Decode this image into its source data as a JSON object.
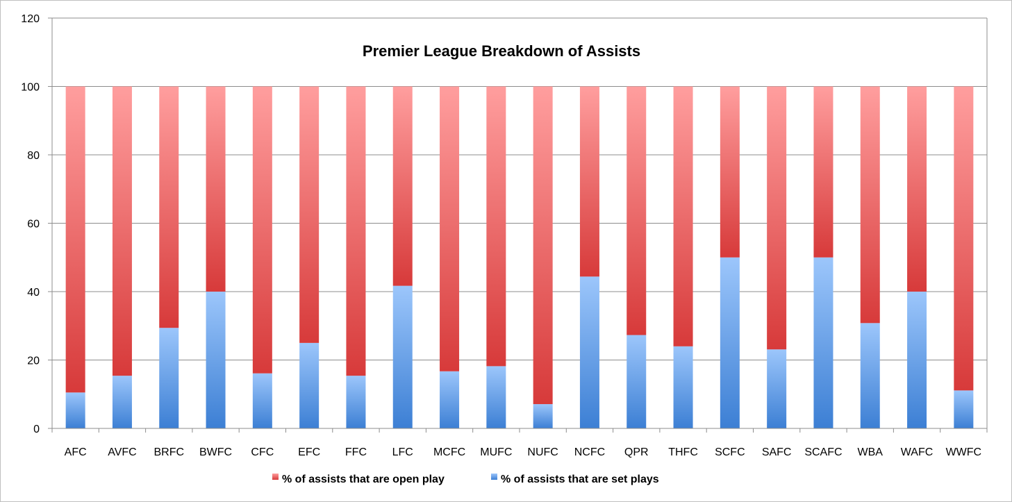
{
  "chart_data": {
    "type": "bar",
    "stacked": true,
    "title": "Premier League Breakdown of Assists",
    "xlabel": "",
    "ylabel": "",
    "ylim": [
      0,
      120
    ],
    "yticks": [
      0,
      20,
      40,
      60,
      80,
      100,
      120
    ],
    "grid": true,
    "legend_position": "bottom",
    "categories": [
      "AFC",
      "AVFC",
      "BRFC",
      "BWFC",
      "CFC",
      "EFC",
      "FFC",
      "LFC",
      "MCFC",
      "MUFC",
      "NUFC",
      "NCFC",
      "QPR",
      "THFC",
      "SCFC",
      "SAFC",
      "SCAFC",
      "WBA",
      "WAFC",
      "WWFC"
    ],
    "series": [
      {
        "name": "% of assists that are set plays",
        "color": "#4a88d8",
        "values": [
          10.5,
          15.4,
          29.4,
          40,
          16.1,
          25,
          15.4,
          41.7,
          16.7,
          18.2,
          7.1,
          44.4,
          27.3,
          24,
          50,
          23.1,
          50,
          30.8,
          40,
          11.1
        ]
      },
      {
        "name": "% of assists that are open play",
        "color": "#e04646",
        "values": [
          89.5,
          84.6,
          70.6,
          60,
          83.9,
          75,
          84.6,
          58.3,
          83.3,
          81.8,
          92.9,
          55.6,
          72.7,
          76,
          50,
          76.9,
          50,
          69.2,
          60,
          88.9
        ]
      }
    ],
    "legend": [
      "% of assists that are open play",
      "% of assists that are set plays"
    ]
  }
}
